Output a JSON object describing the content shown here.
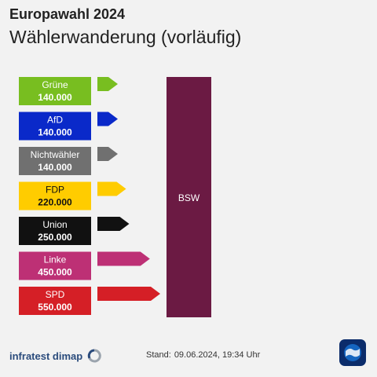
{
  "header": {
    "title": "Europawahl 2024",
    "subtitle": "Wählerwanderung (vorläufig)"
  },
  "chart_data": {
    "type": "bar",
    "target": "BSW",
    "target_color": "#6b1a43",
    "categories": [
      "Grüne",
      "AfD",
      "Nichtwähler",
      "FDP",
      "Union",
      "Linke",
      "SPD"
    ],
    "values": [
      140000,
      140000,
      140000,
      220000,
      250000,
      450000,
      550000
    ],
    "value_labels": [
      "140.000",
      "140.000",
      "140.000",
      "220.000",
      "250.000",
      "450.000",
      "550.000"
    ],
    "colors": [
      "#78be20",
      "#0a29c9",
      "#707070",
      "#ffcc00",
      "#111111",
      "#bd3075",
      "#d51f26"
    ],
    "label_colors": [
      "#ffffff",
      "#ffffff",
      "#ffffff",
      "#111111",
      "#ffffff",
      "#ffffff",
      "#ffffff"
    ]
  },
  "footer": {
    "source": "infratest dimap",
    "stand_label": "Stand:",
    "stand_value": "09.06.2024, 19:34 Uhr"
  }
}
